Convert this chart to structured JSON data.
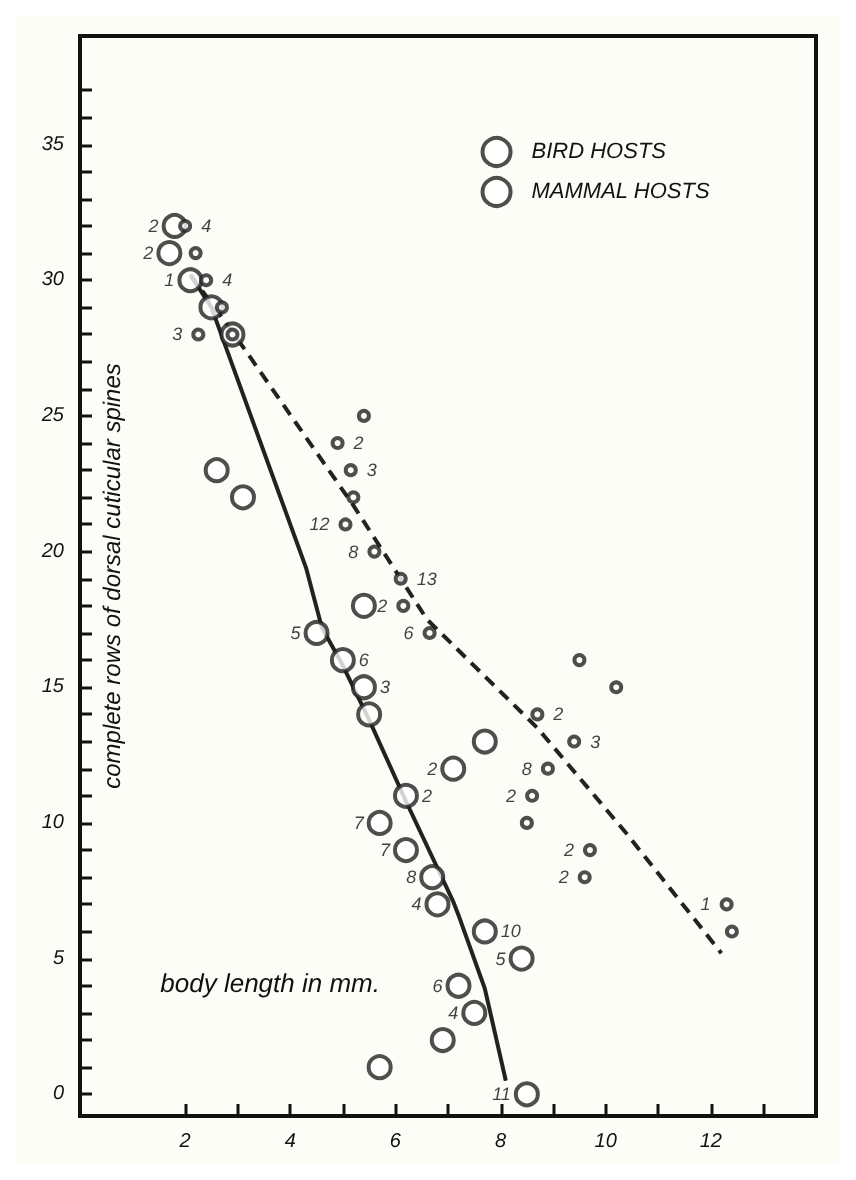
{
  "chart_data": {
    "type": "scatter",
    "xlabel": "body length in mm.",
    "ylabel": "complete rows of dorsal cuticular spines",
    "xlim": [
      0,
      14
    ],
    "ylim": [
      -0.8,
      39
    ],
    "xticks": [
      2,
      {
        "value": 3,
        "label": null
      },
      4,
      {
        "value": 5,
        "label": null
      },
      6,
      {
        "value": 7,
        "label": null
      },
      8,
      {
        "value": 9,
        "label": null
      },
      10,
      {
        "value": 11,
        "label": null
      },
      12,
      {
        "value": 13,
        "label": null
      }
    ],
    "yticks": [
      0,
      {
        "value": 1,
        "label": null
      },
      {
        "value": 2,
        "label": null
      },
      {
        "value": 3,
        "label": null
      },
      {
        "value": 4,
        "label": null
      },
      5,
      {
        "value": 6,
        "label": null
      },
      {
        "value": 7,
        "label": null
      },
      {
        "value": 8,
        "label": null
      },
      {
        "value": 9,
        "label": null
      },
      10,
      {
        "value": 11,
        "label": null
      },
      {
        "value": 12,
        "label": null
      },
      {
        "value": 13,
        "label": null
      },
      {
        "value": 14,
        "label": null
      },
      15,
      {
        "value": 16,
        "label": null
      },
      {
        "value": 17,
        "label": null
      },
      {
        "value": 18,
        "label": null
      },
      {
        "value": 19,
        "label": null
      },
      20,
      {
        "value": 21,
        "label": null
      },
      {
        "value": 22,
        "label": null
      },
      {
        "value": 23,
        "label": null
      },
      {
        "value": 24,
        "label": null
      },
      25,
      {
        "value": 26,
        "label": null
      },
      {
        "value": 27,
        "label": null
      },
      {
        "value": 28,
        "label": null
      },
      {
        "value": 29,
        "label": null
      },
      30,
      {
        "value": 31,
        "label": null
      },
      {
        "value": 32,
        "label": null
      },
      {
        "value": 33,
        "label": null
      },
      {
        "value": 34,
        "label": null
      },
      35,
      {
        "value": 36,
        "label": null
      },
      {
        "value": 37,
        "label": null
      }
    ],
    "grid": false,
    "legend": "top right",
    "marker": "circle",
    "series": [
      {
        "name": "BIRD HOSTS",
        "color": "#222222",
        "x": [
          1.8,
          1.7,
          2.1,
          2.5,
          2.9,
          2.6,
          3.1,
          4.5,
          5.0,
          5.4,
          5.5,
          5.4,
          6.2,
          5.7,
          6.2,
          6.7,
          6.8,
          7.1,
          7.7,
          5.7,
          6.9,
          7.2,
          7.5,
          7.7,
          8.4,
          8.5
        ],
        "values": [
          32,
          31,
          30,
          29,
          28,
          23,
          22,
          17,
          16,
          15,
          14,
          18,
          11,
          10,
          9,
          8,
          7,
          12,
          13,
          1,
          2,
          4,
          3,
          6,
          5,
          0
        ]
      },
      {
        "name": "MAMMAL HOSTS",
        "color": "#222222",
        "x": [
          2.0,
          2.2,
          2.4,
          2.7,
          2.25,
          2.9,
          5.4,
          4.9,
          5.15,
          5.2,
          5.05,
          5.6,
          6.1,
          6.15,
          6.65,
          9.5,
          10.2,
          8.7,
          9.4,
          8.9,
          8.6,
          8.5,
          9.7,
          9.6,
          12.3,
          12.4
        ],
        "values": [
          32,
          31,
          30,
          29,
          28,
          28,
          25,
          24,
          23,
          22,
          21,
          20,
          19,
          18,
          17,
          16,
          15,
          14,
          13,
          12,
          11,
          10,
          9,
          8,
          7,
          6
        ]
      },
      {
        "type": "line",
        "color": "#222222",
        "line_style": "solid",
        "marker": "none",
        "x": [
          2.1,
          2.5,
          4.3,
          4.6,
          5.0,
          5.5,
          6.2,
          7.1,
          7.2,
          7.7,
          8.1
        ],
        "values": [
          30.2,
          29,
          19.4,
          17.2,
          15.8,
          13.8,
          10.8,
          7.1,
          6.6,
          3.9,
          0.5
        ]
      },
      {
        "type": "line",
        "color": "#222222",
        "line_style": "dashed",
        "marker": "none",
        "x": [
          2.1,
          2.9,
          5.2,
          6.1,
          6.6,
          8.7,
          10.4,
          12.2
        ],
        "values": [
          30.2,
          28.1,
          21.7,
          19.0,
          17.5,
          13.5,
          9.6,
          5.2
        ]
      }
    ],
    "annotations": [
      {
        "text": "2",
        "x": 1.8,
        "y": 32
      },
      {
        "text": "2",
        "x": 1.7,
        "y": 31
      },
      {
        "text": "1",
        "x": 2.1,
        "y": 30
      },
      {
        "text": "5",
        "x": 4.5,
        "y": 17
      },
      {
        "text": "6",
        "x": 5.0,
        "y": 16
      },
      {
        "text": "3",
        "x": 5.4,
        "y": 15
      },
      {
        "text": "2",
        "x": 6.2,
        "y": 11
      },
      {
        "text": "7",
        "x": 5.7,
        "y": 10
      },
      {
        "text": "7",
        "x": 6.2,
        "y": 9
      },
      {
        "text": "8",
        "x": 6.7,
        "y": 8
      },
      {
        "text": "4",
        "x": 6.8,
        "y": 7
      },
      {
        "text": "2",
        "x": 7.1,
        "y": 12
      },
      {
        "text": "6",
        "x": 7.2,
        "y": 4
      },
      {
        "text": "4",
        "x": 7.5,
        "y": 3
      },
      {
        "text": "10",
        "x": 7.7,
        "y": 6
      },
      {
        "text": "5",
        "x": 8.4,
        "y": 5
      },
      {
        "text": "11",
        "x": 8.5,
        "y": 0
      },
      {
        "text": "4",
        "x": 2.0,
        "y": 32
      },
      {
        "text": "4",
        "x": 2.4,
        "y": 30
      },
      {
        "text": "3",
        "x": 2.25,
        "y": 28
      },
      {
        "text": "2",
        "x": 4.9,
        "y": 24
      },
      {
        "text": "3",
        "x": 5.15,
        "y": 23
      },
      {
        "text": "12",
        "x": 5.05,
        "y": 21
      },
      {
        "text": "8",
        "x": 5.6,
        "y": 20
      },
      {
        "text": "13",
        "x": 6.1,
        "y": 19
      },
      {
        "text": "2",
        "x": 6.15,
        "y": 18
      },
      {
        "text": "6",
        "x": 6.65,
        "y": 17
      },
      {
        "text": "2",
        "x": 8.7,
        "y": 14
      },
      {
        "text": "3",
        "x": 9.4,
        "y": 13
      },
      {
        "text": "8",
        "x": 8.9,
        "y": 12
      },
      {
        "text": "2",
        "x": 8.6,
        "y": 11
      },
      {
        "text": "2",
        "x": 9.7,
        "y": 9
      },
      {
        "text": "2",
        "x": 9.6,
        "y": 8
      },
      {
        "text": "1",
        "x": 12.3,
        "y": 7
      }
    ]
  }
}
